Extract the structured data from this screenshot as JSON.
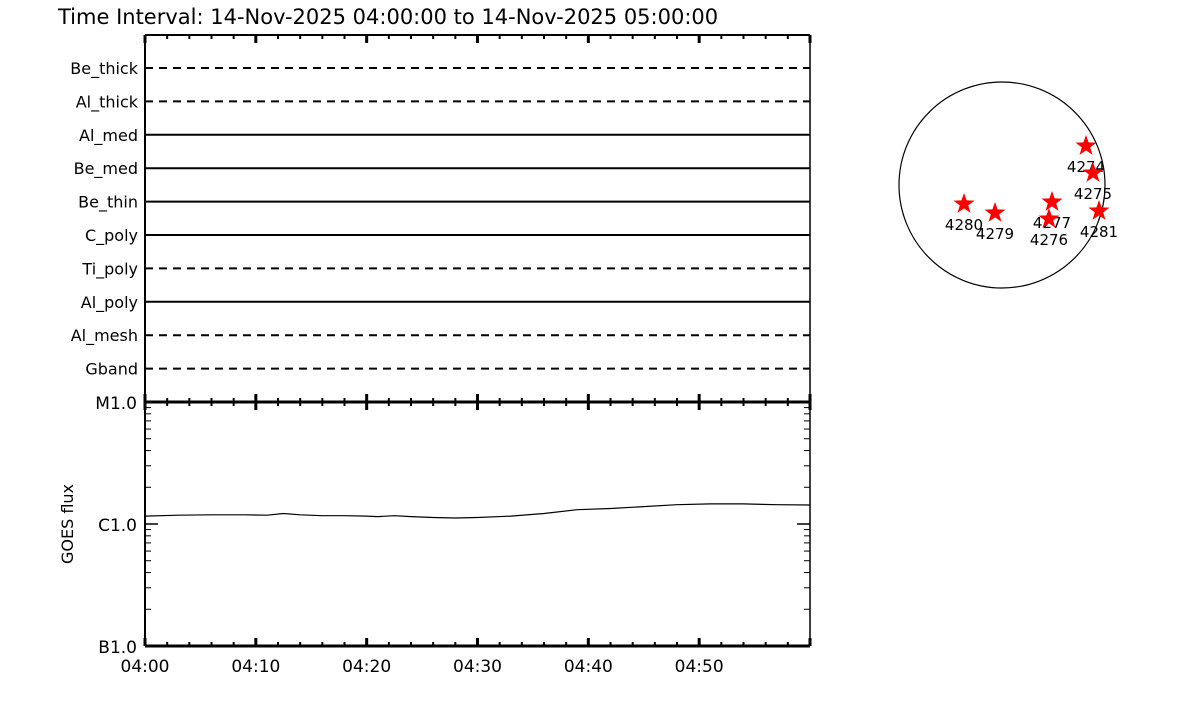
{
  "title": "Time Interval: 14-Nov-2025 04:00:00 to 14-Nov-2025 05:00:00",
  "chart_data": [
    {
      "type": "timeline",
      "x_range": [
        "04:00",
        "05:00"
      ],
      "filters": [
        {
          "name": "Be_thick",
          "style": "dashed"
        },
        {
          "name": "Al_thick",
          "style": "dashed"
        },
        {
          "name": "Al_med",
          "style": "solid"
        },
        {
          "name": "Be_med",
          "style": "solid"
        },
        {
          "name": "Be_thin",
          "style": "solid"
        },
        {
          "name": "C_poly",
          "style": "solid"
        },
        {
          "name": "Ti_poly",
          "style": "dashed"
        },
        {
          "name": "Al_poly",
          "style": "solid"
        },
        {
          "name": "Al_mesh",
          "style": "dashed"
        },
        {
          "name": "Gband",
          "style": "dashed"
        }
      ]
    },
    {
      "type": "line",
      "ylabel": "GOES flux",
      "y_scale": "log",
      "ylim": [
        1e-07,
        1e-05
      ],
      "y_ticks": [
        {
          "label": "B1.0",
          "value": 1e-07
        },
        {
          "label": "C1.0",
          "value": 1e-06
        },
        {
          "label": "M1.0",
          "value": 1e-05
        }
      ],
      "x_ticks": [
        "04:00",
        "04:10",
        "04:20",
        "04:30",
        "04:40",
        "04:50"
      ],
      "xlim": [
        0,
        60
      ],
      "series": [
        {
          "x": [
            0,
            3,
            6,
            9,
            11,
            12.5,
            14,
            16,
            18,
            20,
            21,
            22.5,
            24,
            26,
            28,
            30,
            33,
            36,
            39,
            42,
            45,
            48,
            51,
            54,
            57,
            60
          ],
          "y": [
            1.16e-06,
            1.18e-06,
            1.19e-06,
            1.19e-06,
            1.18e-06,
            1.22e-06,
            1.19e-06,
            1.17e-06,
            1.17e-06,
            1.16e-06,
            1.15e-06,
            1.17e-06,
            1.15e-06,
            1.13e-06,
            1.12e-06,
            1.13e-06,
            1.16e-06,
            1.22e-06,
            1.31e-06,
            1.34e-06,
            1.39e-06,
            1.44e-06,
            1.46e-06,
            1.46e-06,
            1.44e-06,
            1.43e-06
          ]
        }
      ]
    }
  ],
  "sun_map": {
    "star_color": "#ff0000",
    "regions": [
      "4274",
      "4275",
      "4281",
      "4277",
      "4276",
      "4280",
      "4279"
    ]
  }
}
